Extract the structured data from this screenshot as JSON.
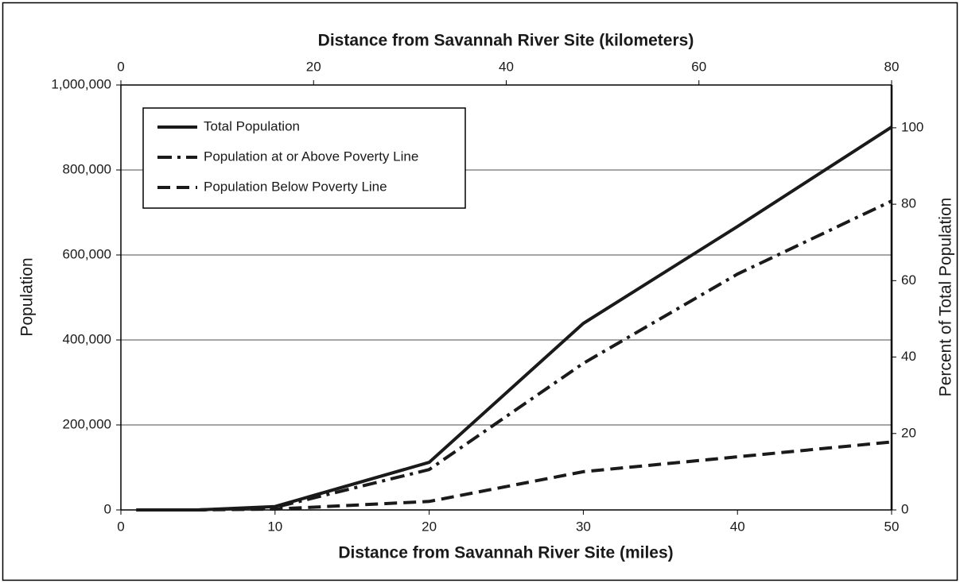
{
  "chart_data": {
    "type": "line",
    "title": "Distance from Savannah River Site (kilometers)",
    "x_label": "Distance from Savannah River Site (miles)",
    "y_label": "Population",
    "y2_label": "Percent of Total Population",
    "x": [
      1,
      5,
      10,
      20,
      30,
      40,
      50
    ],
    "series": [
      {
        "name": "Total Population",
        "color": "#1a1a1a",
        "style": "solid",
        "values": [
          0,
          0,
          8000,
          112000,
          439000,
          667000,
          901000
        ]
      },
      {
        "name": "Population at or Above Poverty Line",
        "color": "#1a1a1a",
        "style": "dashdot",
        "values": [
          0,
          0,
          6000,
          95000,
          345000,
          555000,
          727000
        ]
      },
      {
        "name": "Population Below Poverty Line",
        "color": "#1a1a1a",
        "style": "dashed",
        "values": [
          0,
          0,
          2000,
          20000,
          90000,
          125000,
          160000
        ]
      }
    ],
    "xlim": [
      0,
      50
    ],
    "xticks": [
      0,
      10,
      20,
      30,
      40,
      50
    ],
    "x2lim": [
      0,
      80
    ],
    "x2ticks": [
      0,
      20,
      40,
      60,
      80
    ],
    "ylim": [
      0,
      1000000
    ],
    "yticks": [
      {
        "value": 0,
        "label": "0"
      },
      {
        "value": 200000,
        "label": "200,000"
      },
      {
        "value": 400000,
        "label": "400,000"
      },
      {
        "value": 600000,
        "label": "600,000"
      },
      {
        "value": 800000,
        "label": "800,000"
      },
      {
        "value": 1000000,
        "label": "1,000,000"
      }
    ],
    "y2lim": [
      0,
      111.2
    ],
    "y2ticks": [
      0,
      20,
      40,
      60,
      80,
      100
    ],
    "grid": true,
    "legend": "upper left"
  }
}
